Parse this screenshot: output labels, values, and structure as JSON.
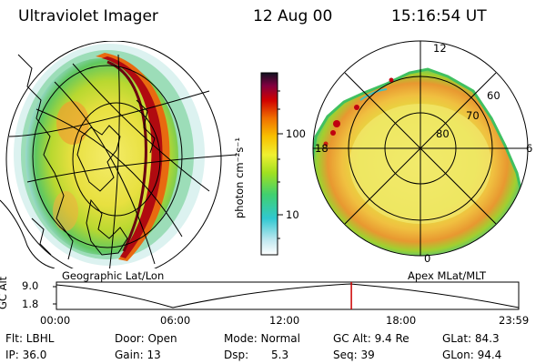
{
  "header": {
    "title": "Ultraviolet Imager",
    "date": "12 Aug 00",
    "time": "15:16:54 UT"
  },
  "colorbar": {
    "unit_label": "photon cm⁻²s⁻¹",
    "ticks": [
      "100",
      "10"
    ]
  },
  "panels": {
    "left_caption": "Geographic Lat/Lon",
    "right_caption": "Apex MLat/MLT"
  },
  "polar_labels": {
    "mlt_top": "12",
    "mlt_left": "18",
    "mlt_right": "6",
    "mlt_bottom": "0",
    "lat_60": "60",
    "lat_70": "70",
    "lat_80": "80"
  },
  "altitude_plot": {
    "ylabel": "GC Alt",
    "y_ticks": [
      "9.0",
      "1.8"
    ],
    "x_ticks": [
      "00:00",
      "06:00",
      "12:00",
      "18:00",
      "23:59"
    ],
    "current_time_fraction": 0.638
  },
  "info": {
    "filter": "Flt: LBHL",
    "ip": "IP: 36.0",
    "door": "Door: Open",
    "gain": "Gain: 13",
    "mode": "Mode: Normal",
    "dsp": "Dsp:",
    "dsp_value": "5.3",
    "gc_alt": "GC Alt: 9.4 Re",
    "seq": "Seq: 39",
    "glat": "GLat: 84.3",
    "glon": "GLon: 94.4"
  },
  "colors": {
    "trace": "#000000",
    "cursor": "#cc0000",
    "outline": "#000000"
  }
}
